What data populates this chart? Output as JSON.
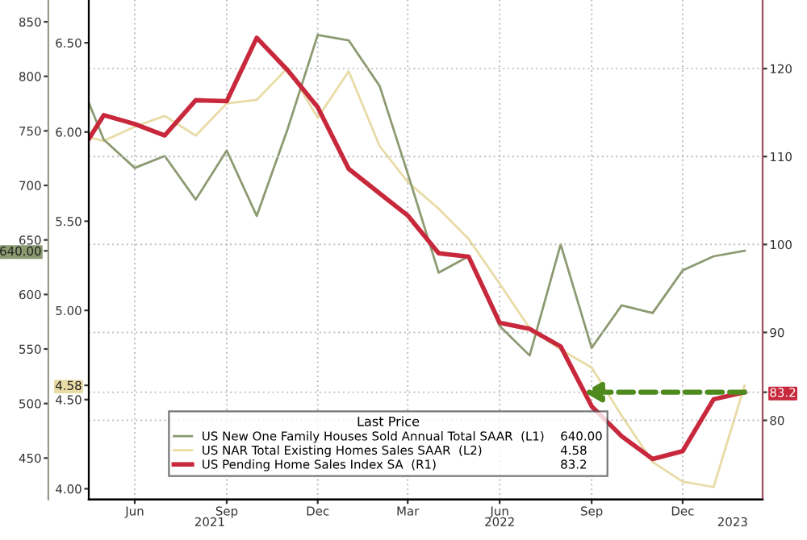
{
  "chart_data": {
    "type": "line",
    "x": [
      "2021-04-16",
      "2021-05",
      "2021-06",
      "2021-07",
      "2021-08",
      "2021-09",
      "2021-10",
      "2021-11",
      "2021-12",
      "2022-01",
      "2022-02",
      "2022-03",
      "2022-04",
      "2022-05",
      "2022-06",
      "2022-07",
      "2022-08",
      "2022-09",
      "2022-10",
      "2022-11",
      "2022-12",
      "2023-01",
      "2023-02"
    ],
    "series": [
      {
        "name": "US New One Family Houses Sold Annual Total SAAR  (L1)",
        "color": "#8c9a70",
        "axis": "y",
        "values": [
          776,
          742,
          716,
          727,
          687,
          732,
          672,
          752,
          838,
          833,
          791,
          711,
          620,
          635,
          571,
          544,
          646,
          551,
          590,
          583,
          622,
          635,
          640
        ]
      },
      {
        "name": "US NAR Total Existing Homes Sales SAAR  (L2)",
        "color": "#e8dba6",
        "axis": "y2",
        "values": [
          5.97,
          5.95,
          6.03,
          6.09,
          5.98,
          6.16,
          6.18,
          6.36,
          6.08,
          6.34,
          5.92,
          5.72,
          5.57,
          5.4,
          5.15,
          4.9,
          4.78,
          4.68,
          4.41,
          4.15,
          4.04,
          4.01,
          4.58
        ]
      },
      {
        "name": "US Pending Home Sales Index SA  (R1)",
        "color": "#c8283c",
        "axis": "y3",
        "values": [
          112.0,
          114.7,
          113.7,
          112.4,
          116.4,
          116.3,
          123.5,
          119.8,
          115.6,
          108.6,
          105.8,
          103.3,
          99.0,
          98.6,
          91.1,
          90.4,
          88.4,
          81.6,
          78.2,
          75.6,
          76.5,
          82.4,
          83.2
        ]
      }
    ],
    "annotations": [
      "640.00",
      "4.58",
      "83.2"
    ],
    "xlim": [
      "2021-04-16",
      "2023-02-19"
    ],
    "xticks": [
      {
        "value": "2021-06",
        "label": "Jun"
      },
      {
        "value": "2021-09",
        "label": "Sep"
      },
      {
        "value": "2021-12",
        "label": "Dec"
      },
      {
        "value": "2022-03",
        "label": "Mar"
      },
      {
        "value": "2022-06",
        "label": "Jun"
      },
      {
        "value": "2022-09",
        "label": "Sep"
      },
      {
        "value": "2022-12",
        "label": "Dec"
      }
    ],
    "x2lim": [
      "2021-04-16",
      "2023-02-19"
    ],
    "x2ticks": [
      {
        "value": "2021-08-15",
        "label": "2021"
      },
      {
        "value": "2022-06",
        "label": "2022"
      },
      {
        "value": "2023-01-20",
        "label": "2023"
      }
    ],
    "ylim": [
      412,
      870
    ],
    "yticks": [
      450,
      500,
      550,
      600,
      {
        "value": 640,
        "label": "640.00"
      },
      650,
      700,
      750,
      800,
      850
    ],
    "y2lim": [
      3.94,
      6.74
    ],
    "y2ticks": [
      {
        "value": 4.0,
        "label": "4.00"
      },
      {
        "value": 4.5,
        "label": "4.50"
      },
      {
        "value": 4.58,
        "label": "4.58"
      },
      {
        "value": 5.0,
        "label": "5.00"
      },
      {
        "value": 5.5,
        "label": "5.50"
      },
      {
        "value": 6.0,
        "label": "6.00"
      },
      {
        "value": 6.5,
        "label": "6.50"
      }
    ],
    "y3lim": [
      71,
      127.8
    ],
    "y3ticks": [
      80,
      83.2,
      90,
      100,
      110,
      120
    ],
    "grid": true,
    "legend": "bottom left",
    "legend_title": "Last Price",
    "marker": "none",
    "line_style": "solid"
  }
}
